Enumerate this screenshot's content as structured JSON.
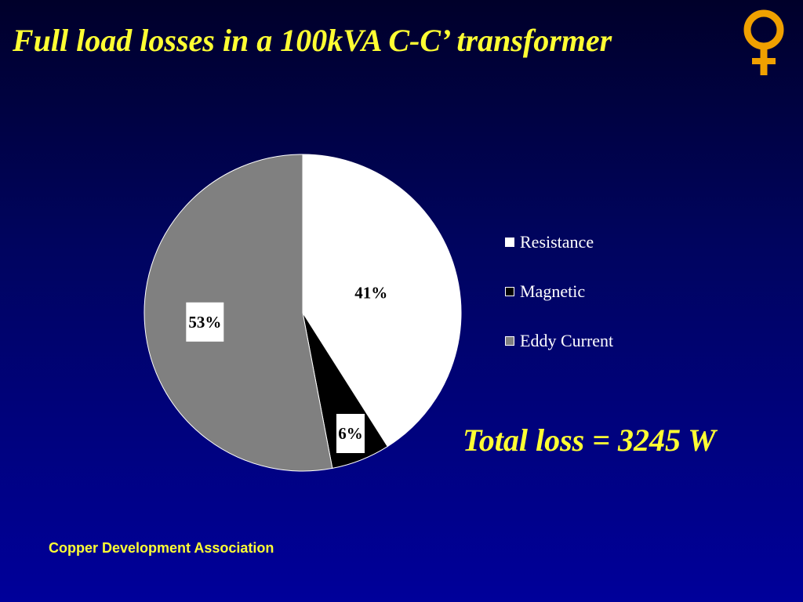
{
  "slide": {
    "title": "Full load losses in a 100kVA C-C’ transformer",
    "total_loss": "Total loss = 3245 W",
    "footer": "Copper Development Association"
  },
  "logo": {
    "icon": "copper-venus-symbol-icon",
    "color": "#f0a000"
  },
  "colors": {
    "title_text": "#ffff33",
    "background_top": "#00002a",
    "background_bottom": "#00009a"
  },
  "chart_data": {
    "type": "pie",
    "title": "",
    "slices": [
      {
        "label": "Resistance",
        "value": 41,
        "display": "41%",
        "color": "#ffffff"
      },
      {
        "label": "Magnetic",
        "value": 6,
        "display": "6%",
        "color": "#000000"
      },
      {
        "label": "Eddy Current",
        "value": 53,
        "display": "53%",
        "color": "#808080"
      }
    ],
    "start": "12 o'clock",
    "direction": "clockwise",
    "legend_position": "right",
    "data_labels": "percent"
  }
}
